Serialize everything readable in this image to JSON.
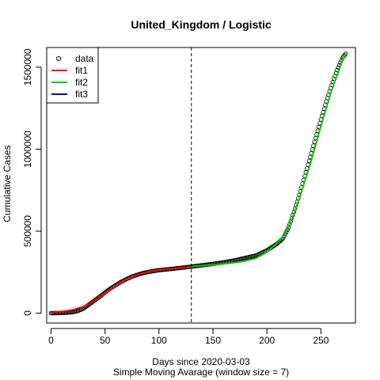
{
  "chart_data": {
    "type": "scatter",
    "title": "United_Kingdom / Logistic",
    "xlabel": "Days since 2020-03-03",
    "subtitle": "Simple Moving Avarage (window size = 7)",
    "ylabel": "Cumulative Cases",
    "xlim": [
      -4,
      282
    ],
    "ylim": [
      -60000,
      1620000
    ],
    "xticks": [
      0,
      50,
      100,
      150,
      200,
      250
    ],
    "yticks": [
      0,
      500000,
      1000000,
      1500000
    ],
    "xtick_labels": [
      "0",
      "50",
      "100",
      "150",
      "200",
      "250"
    ],
    "ytick_labels": [
      "0",
      "500000",
      "1000000",
      "1500000"
    ],
    "vline": 130,
    "legend_position": "top-left",
    "legend": [
      {
        "label": "data",
        "kind": "point",
        "color": "#000000"
      },
      {
        "label": "fit1",
        "kind": "line",
        "color": "#ff0000"
      },
      {
        "label": "fit2",
        "kind": "line",
        "color": "#00cd00"
      },
      {
        "label": "fit3",
        "kind": "line",
        "color": "#0000cd"
      }
    ],
    "data_keyframes": {
      "x": [
        0,
        10,
        20,
        25,
        30,
        35,
        40,
        45,
        50,
        55,
        60,
        65,
        70,
        75,
        80,
        85,
        90,
        95,
        100,
        110,
        120,
        130,
        140,
        150,
        160,
        170,
        180,
        190,
        200,
        205,
        210,
        215,
        220,
        225,
        230,
        235,
        240,
        245,
        250,
        255,
        260,
        265,
        270,
        273
      ],
      "y": [
        0,
        1000,
        6000,
        14000,
        28000,
        52000,
        76000,
        100000,
        126000,
        150000,
        171000,
        191000,
        208000,
        223000,
        234000,
        244000,
        251000,
        257000,
        262000,
        269000,
        276000,
        284000,
        292000,
        300000,
        310000,
        322000,
        337000,
        352000,
        383000,
        404000,
        427000,
        456000,
        522000,
        617000,
        720000,
        836000,
        952000,
        1067000,
        1181000,
        1292000,
        1392000,
        1483000,
        1557000,
        1582000
      ]
    },
    "fit1": {
      "x": [
        0,
        10,
        20,
        30,
        40,
        50,
        60,
        70,
        80,
        90,
        100,
        110,
        120,
        130
      ],
      "y": [
        4000,
        10000,
        20000,
        40000,
        73000,
        118000,
        165000,
        205000,
        233000,
        252000,
        263000,
        271000,
        276000,
        281000
      ]
    },
    "fit2": {
      "x": [
        130,
        140,
        150,
        160,
        170,
        180,
        190,
        200,
        205,
        210,
        215,
        220,
        225,
        230,
        240,
        250,
        260,
        270,
        273
      ],
      "y": [
        284000,
        289000,
        294000,
        300000,
        308000,
        318000,
        335000,
        372000,
        400000,
        432000,
        468000,
        525000,
        606000,
        698000,
        905000,
        1140000,
        1360000,
        1540000,
        1580000
      ]
    },
    "fit3": {
      "x": [],
      "y": []
    }
  }
}
